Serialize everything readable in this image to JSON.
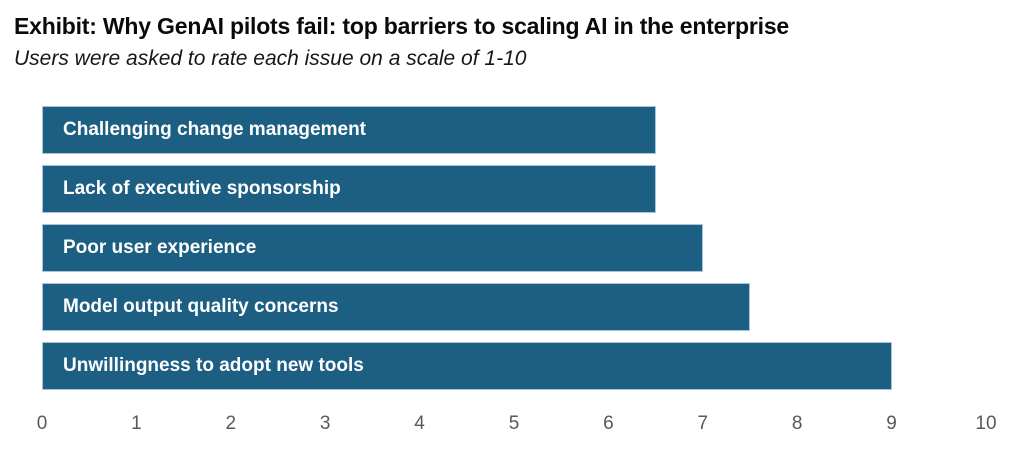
{
  "header": {
    "title": "Exhibit: Why GenAI pilots fail: top barriers to scaling AI in the enterprise",
    "subtitle": "Users were asked to rate each issue on a scale of 1-10"
  },
  "chart_data": {
    "type": "bar",
    "orientation": "horizontal",
    "title": "Exhibit: Why GenAI pilots fail: top barriers to scaling AI in the enterprise",
    "subtitle": "Users were asked to rate each issue on a scale of 1-10",
    "categories": [
      "Challenging change management",
      "Lack of executive sponsorship",
      "Poor user experience",
      "Model output quality concerns",
      "Unwillingness to adopt new tools"
    ],
    "values": [
      6.5,
      6.5,
      7,
      7.5,
      9
    ],
    "xlabel": "",
    "ylabel": "",
    "xlim": [
      0,
      10
    ],
    "x_ticks": [
      "0",
      "1",
      "2",
      "3",
      "4",
      "5",
      "6",
      "7",
      "8",
      "9",
      "10"
    ],
    "grid": false,
    "legend": false,
    "colors": {
      "bar_fill": "#1C5F83",
      "bar_border": "#A9C6D8",
      "bar_label_text": "#FFFFFF",
      "tick_text": "#595959",
      "title_text": "#0A0A0A",
      "background": "#FFFFFF"
    }
  }
}
